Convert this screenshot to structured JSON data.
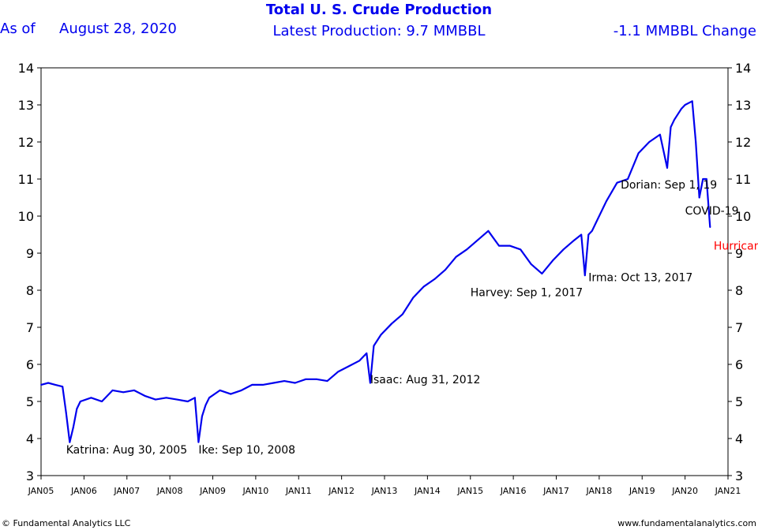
{
  "header": {
    "title": "Total U. S. Crude Production",
    "as_of_label": "As of",
    "as_of_date": "August 28, 2020",
    "latest_production": "Latest Production:  9.7 MMBBL",
    "change": "-1.1 MMBBL Change"
  },
  "footer": {
    "copyright": "© Fundamental Analytics LLC",
    "website": "www.fundamentalanalytics.com"
  },
  "colors": {
    "line": "#0000ee",
    "header": "#0000ee",
    "hurricane_laura": "#ff0000"
  },
  "chart_data": {
    "type": "line",
    "title": "Total U. S. Crude Production",
    "ylim": [
      3,
      14
    ],
    "y_ticks": [
      3,
      4,
      5,
      6,
      7,
      8,
      9,
      10,
      11,
      12,
      13,
      14
    ],
    "xlim": [
      "2005-01",
      "2021-01"
    ],
    "x_tick_labels": [
      "JAN05",
      "JAN06",
      "JAN07",
      "JAN08",
      "JAN09",
      "JAN10",
      "JAN11",
      "JAN12",
      "JAN13",
      "JAN14",
      "JAN15",
      "JAN16",
      "JAN17",
      "JAN18",
      "JAN19",
      "JAN20",
      "JAN21"
    ],
    "grid": false,
    "y_axis_both_sides": true,
    "series": [
      {
        "x": [
          "2005-01",
          "2005-03",
          "2005-05",
          "2005-07",
          "2005-08",
          "2005-09",
          "2005-10",
          "2005-11",
          "2005-12",
          "2006-03",
          "2006-06",
          "2006-09",
          "2006-12",
          "2007-03",
          "2007-06",
          "2007-09",
          "2007-12",
          "2008-03",
          "2008-06",
          "2008-08",
          "2008-09",
          "2008-10",
          "2008-11",
          "2008-12",
          "2009-03",
          "2009-06",
          "2009-09",
          "2009-12",
          "2010-03",
          "2010-06",
          "2010-09",
          "2010-12",
          "2011-03",
          "2011-06",
          "2011-09",
          "2011-12",
          "2012-03",
          "2012-06",
          "2012-08",
          "2012-09",
          "2012-10",
          "2012-12",
          "2013-03",
          "2013-06",
          "2013-09",
          "2013-12",
          "2014-03",
          "2014-06",
          "2014-09",
          "2014-12",
          "2015-03",
          "2015-06",
          "2015-09",
          "2015-12",
          "2016-03",
          "2016-06",
          "2016-09",
          "2016-12",
          "2017-03",
          "2017-06",
          "2017-08",
          "2017-09",
          "2017-10",
          "2017-11",
          "2017-12",
          "2018-03",
          "2018-06",
          "2018-09",
          "2018-12",
          "2019-03",
          "2019-06",
          "2019-08",
          "2019-09",
          "2019-10",
          "2019-12",
          "2020-01",
          "2020-03",
          "2020-04",
          "2020-05",
          "2020-06",
          "2020-07",
          "2020-08"
        ],
        "values": [
          5.45,
          5.5,
          5.45,
          5.4,
          4.7,
          3.9,
          4.3,
          4.8,
          5.0,
          5.1,
          5.0,
          5.3,
          5.25,
          5.3,
          5.15,
          5.05,
          5.1,
          5.05,
          5.0,
          5.1,
          3.9,
          4.6,
          4.9,
          5.1,
          5.3,
          5.2,
          5.3,
          5.45,
          5.45,
          5.5,
          5.55,
          5.5,
          5.6,
          5.6,
          5.55,
          5.8,
          5.95,
          6.1,
          6.3,
          5.5,
          6.5,
          6.8,
          7.1,
          7.35,
          7.8,
          8.1,
          8.3,
          8.55,
          8.9,
          9.1,
          9.35,
          9.6,
          9.2,
          9.2,
          9.1,
          8.7,
          8.45,
          8.8,
          9.1,
          9.35,
          9.5,
          8.4,
          9.5,
          9.6,
          9.8,
          10.4,
          10.9,
          11.0,
          11.7,
          12.0,
          12.2,
          11.3,
          12.4,
          12.6,
          12.9,
          13.0,
          13.1,
          12.0,
          10.5,
          11.0,
          11.0,
          9.7
        ]
      }
    ],
    "annotations": [
      {
        "text": "Katrina: Aug 30, 2005",
        "x": "2005-08",
        "y": 3.7
      },
      {
        "text": "Ike: Sep 10, 2008",
        "x": "2008-09",
        "y": 3.7
      },
      {
        "text": "Isaac: Aug 31, 2012",
        "x": "2012-09",
        "y": 5.6
      },
      {
        "text": "Harvey: Sep 1, 2017",
        "x": "2015-01",
        "y": 7.95
      },
      {
        "text": "Irma: Oct 13, 2017",
        "x": "2017-10",
        "y": 8.35
      },
      {
        "text": "Dorian: Sep 1, 19",
        "x": "2018-07",
        "y": 10.85
      },
      {
        "text": "COVID-19",
        "x": "2020-01",
        "y": 10.15
      },
      {
        "text": "Hurricane Laura",
        "x": "2020-09",
        "y": 9.2,
        "color": "#ff0000"
      }
    ]
  }
}
